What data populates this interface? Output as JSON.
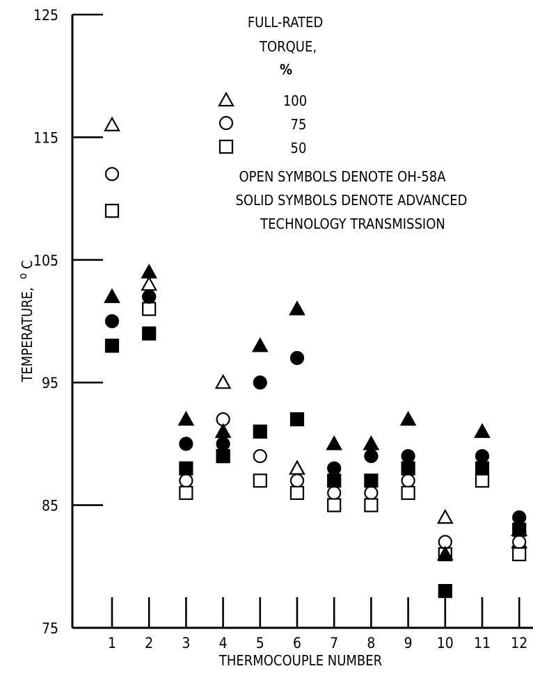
{
  "chart_data": {
    "type": "scatter",
    "xlabel": "THERMOCOUPLE NUMBER",
    "ylabel": "TEMPERATURE, °C",
    "ylabel_main": "TEMPERATURE,",
    "ylabel_unit_super": "o",
    "ylabel_unit": "C",
    "ylim": [
      75,
      125
    ],
    "yticks": [
      75,
      85,
      95,
      105,
      115,
      125
    ],
    "xticks": [
      1,
      2,
      3,
      4,
      5,
      6,
      7,
      8,
      9,
      10,
      11,
      12
    ],
    "grid": false,
    "legend": {
      "title_lines": [
        "FULL-RATED",
        "TORQUE,",
        "%"
      ],
      "entries": [
        {
          "marker": "triangle",
          "label": "100"
        },
        {
          "marker": "circle",
          "label": "75"
        },
        {
          "marker": "square",
          "label": "50"
        }
      ],
      "notes": [
        "OPEN SYMBOLS DENOTE OH-58A",
        "SOLID SYMBOLS DENOTE ADVANCED",
        "TECHNOLOGY TRANSMISSION"
      ]
    },
    "series": [
      {
        "marker": "triangle",
        "fill": "open",
        "points": [
          [
            1,
            116
          ],
          [
            2,
            103
          ],
          [
            4,
            95
          ],
          [
            6,
            88
          ],
          [
            10,
            84
          ],
          [
            12,
            82
          ]
        ]
      },
      {
        "marker": "circle",
        "fill": "open",
        "points": [
          [
            1,
            112
          ],
          [
            2,
            102
          ],
          [
            3,
            87
          ],
          [
            4,
            92
          ],
          [
            5,
            89
          ],
          [
            6,
            87
          ],
          [
            7,
            86
          ],
          [
            8,
            86
          ],
          [
            9,
            87
          ],
          [
            10,
            82
          ],
          [
            12,
            82
          ]
        ]
      },
      {
        "marker": "square",
        "fill": "open",
        "points": [
          [
            1,
            109
          ],
          [
            2,
            101
          ],
          [
            3,
            86
          ],
          [
            4,
            89
          ],
          [
            5,
            87
          ],
          [
            6,
            86
          ],
          [
            7,
            85
          ],
          [
            8,
            85
          ],
          [
            9,
            86
          ],
          [
            10,
            81
          ],
          [
            11,
            87
          ],
          [
            12,
            81
          ]
        ]
      },
      {
        "marker": "triangle",
        "fill": "solid",
        "points": [
          [
            1,
            102
          ],
          [
            2,
            104
          ],
          [
            3,
            92
          ],
          [
            4,
            91
          ],
          [
            5,
            98
          ],
          [
            6,
            101
          ],
          [
            7,
            90
          ],
          [
            8,
            90
          ],
          [
            9,
            92
          ],
          [
            10,
            81
          ],
          [
            11,
            91
          ],
          [
            12,
            83
          ]
        ]
      },
      {
        "marker": "circle",
        "fill": "solid",
        "points": [
          [
            1,
            100
          ],
          [
            2,
            102
          ],
          [
            3,
            90
          ],
          [
            4,
            90
          ],
          [
            5,
            95
          ],
          [
            6,
            97
          ],
          [
            7,
            88
          ],
          [
            8,
            89
          ],
          [
            9,
            89
          ],
          [
            11,
            89
          ],
          [
            12,
            84
          ]
        ]
      },
      {
        "marker": "square",
        "fill": "solid",
        "points": [
          [
            1,
            98
          ],
          [
            2,
            99
          ],
          [
            3,
            88
          ],
          [
            4,
            89
          ],
          [
            5,
            91
          ],
          [
            6,
            92
          ],
          [
            7,
            87
          ],
          [
            8,
            87
          ],
          [
            9,
            88
          ],
          [
            10,
            78
          ],
          [
            11,
            88
          ],
          [
            12,
            83
          ]
        ]
      }
    ]
  }
}
